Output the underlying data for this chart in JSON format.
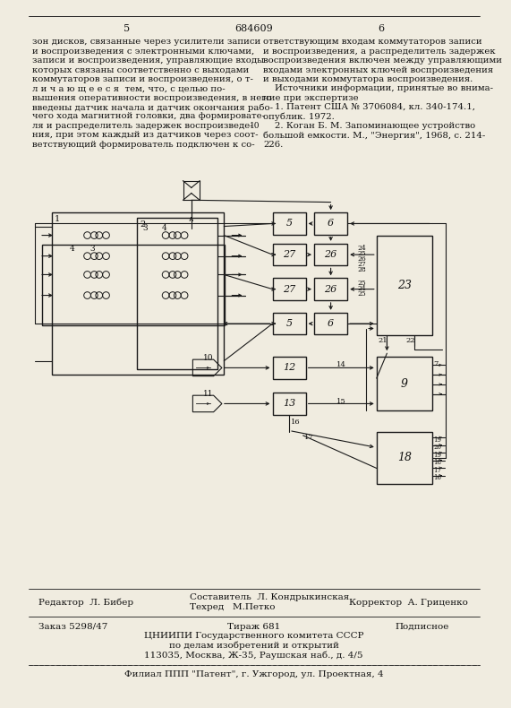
{
  "patent_number": "684609",
  "page_left": "5",
  "page_right": "6",
  "left_text_lines": [
    "зон дисков, связанные через усилители записи",
    "и воспроизведения с электронными ключами,",
    "записи и воспроизведения, управляющие входы",
    "которых связаны соответственно с выходами",
    "коммутаторов записи и воспроизведения, о т-",
    "л и ч а ю щ е е с я  тем, что, с целью по-",
    "вышения оперативности воспроизведения, в него",
    "введены датчик начала и датчик окончания рабо-",
    "чего хода магнитной головки, два формировате-",
    "ля и распределитель задержек воспроизведе-",
    "ния, при этом каждый из датчиков через соот-",
    "ветствующий формирователь подключен к со-"
  ],
  "right_text_lines": [
    "ответствующим входам коммутаторов записи",
    "и воспроизведения, а распределитель задержек",
    "воспроизведения включен между управляющими",
    "входами электронных ключей воспроизведения",
    "и выходами коммутатора воспроизведения.",
    "    Источники информации, принятые во внима-",
    "ние при экспертизе",
    "    1. Патент США № 3706084, кл. 340-174.1,",
    "опублик. 1972.",
    "    2. Коган Б. М. Запоминающее устройство",
    "большой емкости. М., \"Энергия\", 1968, с. 214-",
    "226."
  ],
  "marker_10_line": 9,
  "footer_editor": "Редактор  Л. Бибер",
  "footer_composer": "Составитель  Л. Кондрыкинская",
  "footer_techred": "Техред   М.Петко",
  "footer_corrector": "Корректор  А. Гриценко",
  "footer_order": "Заказ 5298/47",
  "footer_edition": "Тираж 681",
  "footer_type": "Подписное",
  "footer_org1": "ЦНИИПИ Государственного комитета СССР",
  "footer_org2": "по делам изобретений и открытий",
  "footer_address": "113035, Москва, Ж-35, Раушская наб., д. 4/5",
  "footer_branch": "Филиал ППП \"Патент\", г. Ужгород, ул. Проектная, 4",
  "bg_color": "#f0ece0",
  "line_color": "#1a1a1a",
  "text_color": "#111111"
}
